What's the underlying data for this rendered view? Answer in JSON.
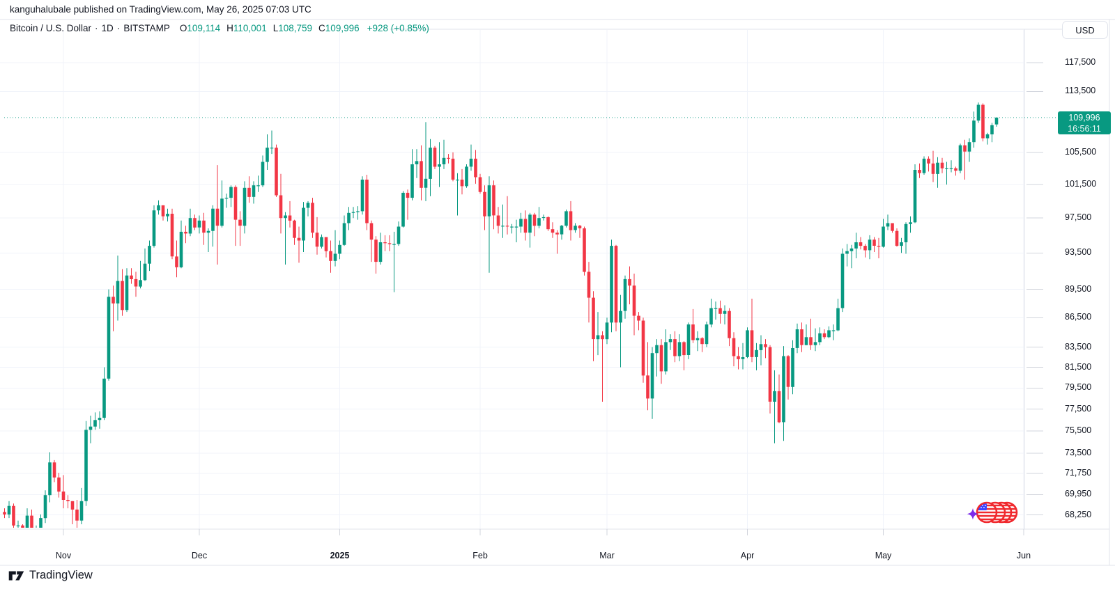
{
  "attribution": {
    "text": "kanguhalubale published on TradingView.com, May 26, 2025 07:03 UTC"
  },
  "header": {
    "symbol": "Bitcoin / U.S. Dollar",
    "separator": "·",
    "interval": "1D",
    "exchange": "BITSTAMP",
    "ohlc": [
      {
        "label": "O",
        "value": "109,114"
      },
      {
        "label": "H",
        "value": "110,001"
      },
      {
        "label": "L",
        "value": "108,759"
      },
      {
        "label": "C",
        "value": "109,996"
      }
    ],
    "change": "+928 (+0.85%)"
  },
  "toolbar": {
    "currency_label": "USD"
  },
  "price_scale": {
    "labels": [
      {
        "text": "117,500",
        "price": 117.5
      },
      {
        "text": "113,500",
        "price": 113.5
      },
      {
        "text": "105,500",
        "price": 105.5
      },
      {
        "text": "101,500",
        "price": 101.5
      },
      {
        "text": "97,500",
        "price": 97.5
      },
      {
        "text": "93,500",
        "price": 93.5
      },
      {
        "text": "89,500",
        "price": 89.5
      },
      {
        "text": "86,500",
        "price": 86.5
      },
      {
        "text": "83,500",
        "price": 83.5
      },
      {
        "text": "81,500",
        "price": 81.5
      },
      {
        "text": "79,500",
        "price": 79.5
      },
      {
        "text": "77,500",
        "price": 77.5
      },
      {
        "text": "75,500",
        "price": 75.5
      },
      {
        "text": "73,500",
        "price": 73.5
      },
      {
        "text": "71,750",
        "price": 71.75
      },
      {
        "text": "69,950",
        "price": 69.95
      },
      {
        "text": "68,250",
        "price": 68.25
      }
    ],
    "last_price_badge": {
      "price_text": "109,996",
      "countdown": "16:56:11",
      "price_value": 109.996
    }
  },
  "time_scale": {
    "labels": [
      {
        "text": "Nov",
        "index": 13,
        "bold": false
      },
      {
        "text": "Dec",
        "index": 43,
        "bold": false
      },
      {
        "text": "2025",
        "index": 74,
        "bold": true
      },
      {
        "text": "Feb",
        "index": 105,
        "bold": false
      },
      {
        "text": "Mar",
        "index": 133,
        "bold": false
      },
      {
        "text": "Apr",
        "index": 164,
        "bold": false
      },
      {
        "text": "May",
        "index": 194,
        "bold": false
      },
      {
        "text": "Jun",
        "index": 225,
        "bold": false
      }
    ]
  },
  "branding": {
    "logo_text": "TradingView"
  },
  "colors": {
    "up": "#089981",
    "down": "#f23645",
    "text": "#131722",
    "grid": "#f0f3fa",
    "border": "#e0e3eb",
    "tick": "#d1d4dc",
    "badge_bg": "#089981",
    "badge_text": "#ffffff",
    "sticker_red": "#f0282d",
    "sticker_blue": "#3d45ff",
    "sticker_purple": "#7c2bea"
  },
  "chart_data": {
    "type": "candlestick",
    "title": "Bitcoin / U.S. Dollar",
    "interval": "1D",
    "exchange": "BITSTAMP",
    "unit": "USD (thousands)",
    "scale": "logarithmic",
    "start_date": "2024-10-19",
    "end_date": "2025-05-26",
    "ylim": [
      67.0,
      119.5
    ],
    "last_price": 109996,
    "last_ohlc": {
      "open": 109114,
      "high": 110001,
      "low": 108759,
      "close": 109996,
      "change": "+928 (+0.85%)"
    },
    "columns": [
      "open",
      "high",
      "low",
      "close"
    ],
    "candles": [
      [
        68.5,
        68.8,
        68.0,
        68.3
      ],
      [
        68.3,
        69.4,
        68.0,
        69.0
      ],
      [
        69.0,
        69.2,
        67.1,
        67.4
      ],
      [
        67.4,
        67.8,
        66.9,
        67.4
      ],
      [
        67.4,
        67.5,
        65.8,
        66.4
      ],
      [
        66.4,
        68.8,
        66.1,
        68.2
      ],
      [
        68.2,
        68.7,
        65.9,
        66.6
      ],
      [
        66.6,
        67.4,
        66.2,
        67.0
      ],
      [
        67.0,
        68.3,
        66.8,
        68.0
      ],
      [
        68.0,
        70.3,
        67.6,
        69.9
      ],
      [
        69.9,
        73.6,
        69.3,
        72.7
      ],
      [
        72.7,
        72.9,
        71.0,
        71.4
      ],
      [
        71.4,
        71.8,
        69.7,
        70.2
      ],
      [
        70.2,
        71.6,
        68.8,
        69.5
      ],
      [
        69.5,
        69.9,
        68.8,
        69.4
      ],
      [
        69.4,
        69.4,
        67.5,
        68.7
      ],
      [
        68.7,
        69.5,
        66.8,
        67.8
      ],
      [
        67.8,
        70.5,
        67.5,
        69.4
      ],
      [
        69.4,
        76.4,
        69.0,
        75.6
      ],
      [
        75.6,
        76.9,
        74.4,
        75.9
      ],
      [
        75.9,
        77.2,
        75.6,
        76.5
      ],
      [
        76.5,
        77.3,
        75.7,
        76.7
      ],
      [
        76.7,
        81.5,
        76.5,
        80.4
      ],
      [
        80.4,
        89.5,
        80.2,
        88.7
      ],
      [
        88.7,
        89.9,
        85.1,
        88.0
      ],
      [
        88.0,
        93.2,
        86.2,
        90.4
      ],
      [
        90.4,
        91.7,
        86.7,
        87.3
      ],
      [
        87.3,
        91.8,
        87.1,
        91.0
      ],
      [
        91.0,
        91.8,
        90.1,
        90.6
      ],
      [
        90.6,
        91.4,
        88.7,
        89.8
      ],
      [
        89.8,
        92.6,
        89.6,
        90.5
      ],
      [
        90.5,
        94.0,
        90.4,
        92.3
      ],
      [
        92.3,
        94.9,
        91.5,
        94.3
      ],
      [
        94.3,
        99.0,
        94.1,
        98.4
      ],
      [
        98.4,
        99.6,
        97.9,
        99.0
      ],
      [
        99.0,
        99.0,
        97.2,
        97.7
      ],
      [
        97.7,
        98.6,
        97.1,
        98.0
      ],
      [
        98.0,
        98.6,
        92.8,
        93.1
      ],
      [
        93.1,
        94.9,
        90.8,
        91.9
      ],
      [
        91.9,
        97.2,
        91.8,
        95.9
      ],
      [
        95.9,
        96.6,
        94.6,
        95.7
      ],
      [
        95.7,
        98.6,
        95.4,
        97.5
      ],
      [
        97.5,
        97.9,
        96.1,
        96.4
      ],
      [
        96.4,
        97.8,
        95.7,
        97.2
      ],
      [
        97.2,
        98.1,
        94.4,
        95.8
      ],
      [
        95.8,
        96.3,
        93.6,
        96.0
      ],
      [
        96.0,
        99.0,
        94.2,
        98.6
      ],
      [
        98.6,
        103.9,
        92.2,
        96.6
      ],
      [
        96.6,
        102.0,
        96.4,
        99.8
      ],
      [
        99.8,
        100.4,
        98.7,
        99.9
      ],
      [
        99.9,
        101.4,
        98.8,
        101.2
      ],
      [
        101.2,
        101.4,
        94.3,
        97.3
      ],
      [
        97.3,
        98.3,
        94.3,
        96.6
      ],
      [
        96.6,
        101.9,
        95.7,
        101.1
      ],
      [
        101.1,
        102.5,
        99.3,
        100.0
      ],
      [
        100.0,
        101.9,
        99.2,
        101.4
      ],
      [
        101.4,
        102.6,
        100.6,
        101.4
      ],
      [
        101.4,
        105.1,
        101.2,
        104.3
      ],
      [
        104.3,
        107.8,
        103.3,
        106.1
      ],
      [
        106.1,
        108.3,
        105.3,
        106.1
      ],
      [
        106.1,
        106.5,
        100.0,
        100.2
      ],
      [
        100.2,
        102.8,
        95.7,
        97.5
      ],
      [
        97.5,
        98.2,
        92.2,
        97.8
      ],
      [
        97.8,
        99.5,
        96.4,
        97.2
      ],
      [
        97.2,
        97.3,
        94.4,
        95.2
      ],
      [
        95.2,
        96.5,
        92.4,
        94.9
      ],
      [
        94.9,
        99.4,
        93.6,
        98.7
      ],
      [
        98.7,
        99.5,
        97.7,
        99.3
      ],
      [
        99.3,
        99.9,
        95.2,
        95.8
      ],
      [
        95.8,
        97.6,
        93.3,
        94.2
      ],
      [
        94.2,
        95.6,
        94.0,
        95.3
      ],
      [
        95.3,
        95.3,
        93.0,
        93.7
      ],
      [
        93.7,
        94.9,
        91.3,
        92.6
      ],
      [
        92.6,
        96.1,
        92.0,
        93.4
      ],
      [
        93.4,
        94.9,
        92.8,
        94.4
      ],
      [
        94.4,
        97.8,
        94.3,
        96.9
      ],
      [
        96.9,
        98.8,
        96.1,
        98.1
      ],
      [
        98.1,
        98.8,
        97.5,
        98.2
      ],
      [
        98.2,
        98.9,
        97.3,
        98.3
      ],
      [
        98.3,
        102.5,
        97.9,
        102.1
      ],
      [
        102.1,
        102.7,
        96.1,
        96.9
      ],
      [
        96.9,
        97.2,
        92.5,
        95.0
      ],
      [
        95.0,
        95.4,
        91.2,
        92.5
      ],
      [
        92.5,
        95.8,
        92.2,
        94.7
      ],
      [
        94.7,
        95.5,
        93.7,
        94.6
      ],
      [
        94.6,
        95.5,
        93.7,
        94.5
      ],
      [
        94.5,
        95.9,
        89.2,
        94.5
      ],
      [
        94.5,
        97.1,
        94.3,
        96.5
      ],
      [
        96.5,
        100.7,
        96.4,
        100.5
      ],
      [
        100.5,
        100.9,
        97.3,
        99.9
      ],
      [
        99.9,
        105.9,
        99.6,
        104.0
      ],
      [
        104.0,
        105.9,
        102.3,
        104.4
      ],
      [
        104.4,
        106.4,
        99.6,
        101.1
      ],
      [
        101.1,
        109.4,
        99.5,
        102.2
      ],
      [
        102.2,
        107.2,
        100.1,
        106.1
      ],
      [
        106.1,
        106.3,
        103.4,
        103.7
      ],
      [
        103.7,
        106.8,
        101.2,
        104.0
      ],
      [
        104.0,
        107.1,
        103.4,
        104.8
      ],
      [
        104.8,
        105.3,
        104.1,
        104.7
      ],
      [
        104.7,
        105.5,
        101.9,
        102.1
      ],
      [
        102.1,
        102.9,
        97.8,
        102.1
      ],
      [
        102.1,
        103.4,
        100.3,
        101.3
      ],
      [
        101.3,
        104.0,
        101.1,
        103.7
      ],
      [
        103.7,
        106.5,
        103.2,
        104.7
      ],
      [
        104.7,
        105.8,
        101.6,
        102.4
      ],
      [
        102.4,
        102.8,
        100.4,
        100.6
      ],
      [
        100.6,
        101.4,
        96.1,
        97.7
      ],
      [
        97.7,
        102.5,
        91.3,
        101.4
      ],
      [
        101.4,
        102.0,
        96.2,
        97.8
      ],
      [
        97.8,
        98.8,
        95.7,
        96.6
      ],
      [
        96.6,
        99.1,
        95.2,
        96.6
      ],
      [
        96.6,
        100.1,
        95.6,
        96.5
      ],
      [
        96.5,
        96.8,
        95.7,
        96.5
      ],
      [
        96.5,
        97.3,
        94.7,
        96.5
      ],
      [
        96.5,
        98.1,
        95.8,
        97.4
      ],
      [
        97.4,
        98.4,
        94.9,
        95.8
      ],
      [
        95.8,
        98.1,
        94.1,
        97.9
      ],
      [
        97.9,
        98.1,
        95.4,
        96.6
      ],
      [
        96.6,
        98.8,
        96.3,
        97.5
      ],
      [
        97.5,
        97.9,
        97.2,
        97.6
      ],
      [
        97.6,
        97.7,
        96.0,
        96.2
      ],
      [
        96.2,
        97.0,
        95.2,
        95.8
      ],
      [
        95.8,
        96.1,
        93.4,
        95.6
      ],
      [
        95.6,
        96.7,
        95.0,
        96.6
      ],
      [
        96.6,
        98.5,
        96.4,
        98.3
      ],
      [
        98.3,
        99.5,
        94.9,
        96.1
      ],
      [
        96.1,
        96.9,
        95.8,
        96.6
      ],
      [
        96.6,
        96.7,
        95.2,
        96.3
      ],
      [
        96.3,
        96.5,
        91.0,
        91.4
      ],
      [
        91.4,
        92.5,
        86.0,
        88.6
      ],
      [
        88.6,
        89.3,
        82.1,
        84.3
      ],
      [
        84.3,
        87.1,
        82.7,
        84.7
      ],
      [
        84.7,
        85.1,
        78.2,
        84.3
      ],
      [
        84.3,
        86.5,
        83.8,
        86.0
      ],
      [
        86.0,
        95.0,
        85.0,
        94.3
      ],
      [
        94.3,
        94.4,
        85.1,
        86.0
      ],
      [
        86.0,
        88.9,
        81.5,
        87.2
      ],
      [
        87.2,
        91.0,
        86.4,
        90.6
      ],
      [
        90.6,
        92.0,
        87.9,
        89.9
      ],
      [
        89.9,
        91.2,
        84.7,
        86.7
      ],
      [
        86.7,
        87.1,
        85.2,
        86.2
      ],
      [
        86.2,
        86.5,
        80.0,
        80.7
      ],
      [
        80.7,
        84.0,
        77.4,
        78.5
      ],
      [
        78.5,
        83.5,
        76.6,
        82.9
      ],
      [
        82.9,
        84.3,
        80.6,
        83.7
      ],
      [
        83.7,
        84.3,
        79.9,
        81.1
      ],
      [
        81.1,
        85.3,
        80.8,
        84.0
      ],
      [
        84.0,
        84.8,
        83.2,
        84.3
      ],
      [
        84.3,
        85.1,
        82.0,
        82.6
      ],
      [
        82.6,
        84.8,
        82.1,
        84.0
      ],
      [
        84.0,
        84.1,
        81.2,
        82.7
      ],
      [
        82.7,
        86.0,
        82.3,
        85.8
      ],
      [
        85.8,
        87.4,
        83.9,
        84.2
      ],
      [
        84.2,
        85.1,
        83.1,
        84.4
      ],
      [
        84.4,
        84.5,
        83.0,
        83.8
      ],
      [
        83.8,
        86.1,
        83.5,
        85.8
      ],
      [
        85.8,
        88.5,
        85.5,
        87.5
      ],
      [
        87.5,
        88.2,
        86.3,
        87.5
      ],
      [
        87.5,
        88.3,
        85.9,
        86.9
      ],
      [
        86.9,
        87.8,
        85.8,
        87.2
      ],
      [
        87.2,
        87.5,
        83.6,
        84.4
      ],
      [
        84.4,
        85.0,
        81.6,
        82.6
      ],
      [
        82.6,
        83.5,
        81.3,
        82.3
      ],
      [
        82.3,
        83.9,
        81.3,
        82.5
      ],
      [
        82.5,
        85.5,
        82.4,
        85.2
      ],
      [
        85.2,
        88.5,
        82.0,
        82.5
      ],
      [
        82.5,
        83.9,
        81.2,
        83.2
      ],
      [
        83.2,
        84.7,
        81.7,
        83.8
      ],
      [
        83.8,
        84.3,
        82.4,
        83.5
      ],
      [
        83.5,
        83.7,
        77.1,
        78.2
      ],
      [
        78.2,
        81.2,
        74.4,
        79.2
      ],
      [
        79.2,
        80.8,
        76.2,
        76.3
      ],
      [
        76.3,
        83.6,
        74.6,
        82.6
      ],
      [
        82.6,
        82.7,
        78.4,
        79.6
      ],
      [
        79.6,
        84.2,
        78.9,
        83.4
      ],
      [
        83.4,
        85.9,
        82.9,
        85.3
      ],
      [
        85.3,
        86.0,
        83.0,
        83.7
      ],
      [
        83.7,
        85.8,
        83.7,
        84.5
      ],
      [
        84.5,
        86.4,
        83.2,
        83.7
      ],
      [
        83.7,
        85.4,
        83.1,
        84.0
      ],
      [
        84.0,
        85.5,
        83.7,
        84.9
      ],
      [
        84.9,
        85.3,
        84.3,
        84.5
      ],
      [
        84.5,
        85.6,
        84.4,
        85.2
      ],
      [
        85.2,
        85.8,
        84.2,
        85.2
      ],
      [
        85.2,
        88.5,
        85.1,
        87.5
      ],
      [
        87.5,
        94.0,
        87.1,
        93.4
      ],
      [
        93.4,
        94.5,
        92.0,
        93.7
      ],
      [
        93.7,
        94.4,
        91.8,
        94.0
      ],
      [
        94.0,
        95.8,
        92.9,
        94.7
      ],
      [
        94.7,
        95.3,
        93.9,
        94.3
      ],
      [
        94.3,
        94.5,
        93.0,
        93.8
      ],
      [
        93.8,
        95.5,
        92.8,
        95.0
      ],
      [
        95.0,
        95.3,
        93.6,
        94.3
      ],
      [
        94.3,
        95.2,
        92.9,
        94.2
      ],
      [
        94.2,
        97.4,
        94.1,
        96.5
      ],
      [
        96.5,
        97.9,
        96.1,
        96.9
      ],
      [
        96.9,
        96.9,
        95.8,
        96.0
      ],
      [
        96.0,
        96.3,
        94.2,
        94.3
      ],
      [
        94.3,
        95.2,
        93.5,
        94.7
      ],
      [
        94.7,
        97.0,
        93.4,
        96.8
      ],
      [
        96.8,
        97.7,
        95.8,
        97.0
      ],
      [
        97.0,
        104.0,
        96.9,
        103.3
      ],
      [
        103.3,
        104.1,
        102.3,
        102.9
      ],
      [
        102.9,
        105.0,
        102.7,
        104.7
      ],
      [
        104.7,
        105.0,
        103.1,
        104.1
      ],
      [
        104.1,
        105.7,
        101.8,
        102.8
      ],
      [
        102.8,
        104.9,
        101.1,
        104.2
      ],
      [
        104.2,
        104.8,
        102.9,
        103.5
      ],
      [
        103.5,
        104.3,
        101.5,
        103.5
      ],
      [
        103.5,
        104.5,
        103.0,
        103.5
      ],
      [
        103.5,
        103.7,
        102.6,
        103.2
      ],
      [
        103.2,
        106.6,
        102.9,
        106.4
      ],
      [
        106.4,
        107.1,
        102.1,
        105.6
      ],
      [
        105.6,
        107.3,
        104.3,
        106.8
      ],
      [
        106.8,
        110.8,
        106.1,
        109.6
      ],
      [
        109.6,
        112.0,
        109.3,
        111.7
      ],
      [
        111.7,
        111.9,
        106.9,
        107.3
      ],
      [
        107.3,
        108.0,
        106.5,
        107.8
      ],
      [
        107.8,
        109.3,
        106.8,
        109.0
      ],
      [
        109.1,
        110.0,
        108.8,
        110.0
      ]
    ]
  }
}
